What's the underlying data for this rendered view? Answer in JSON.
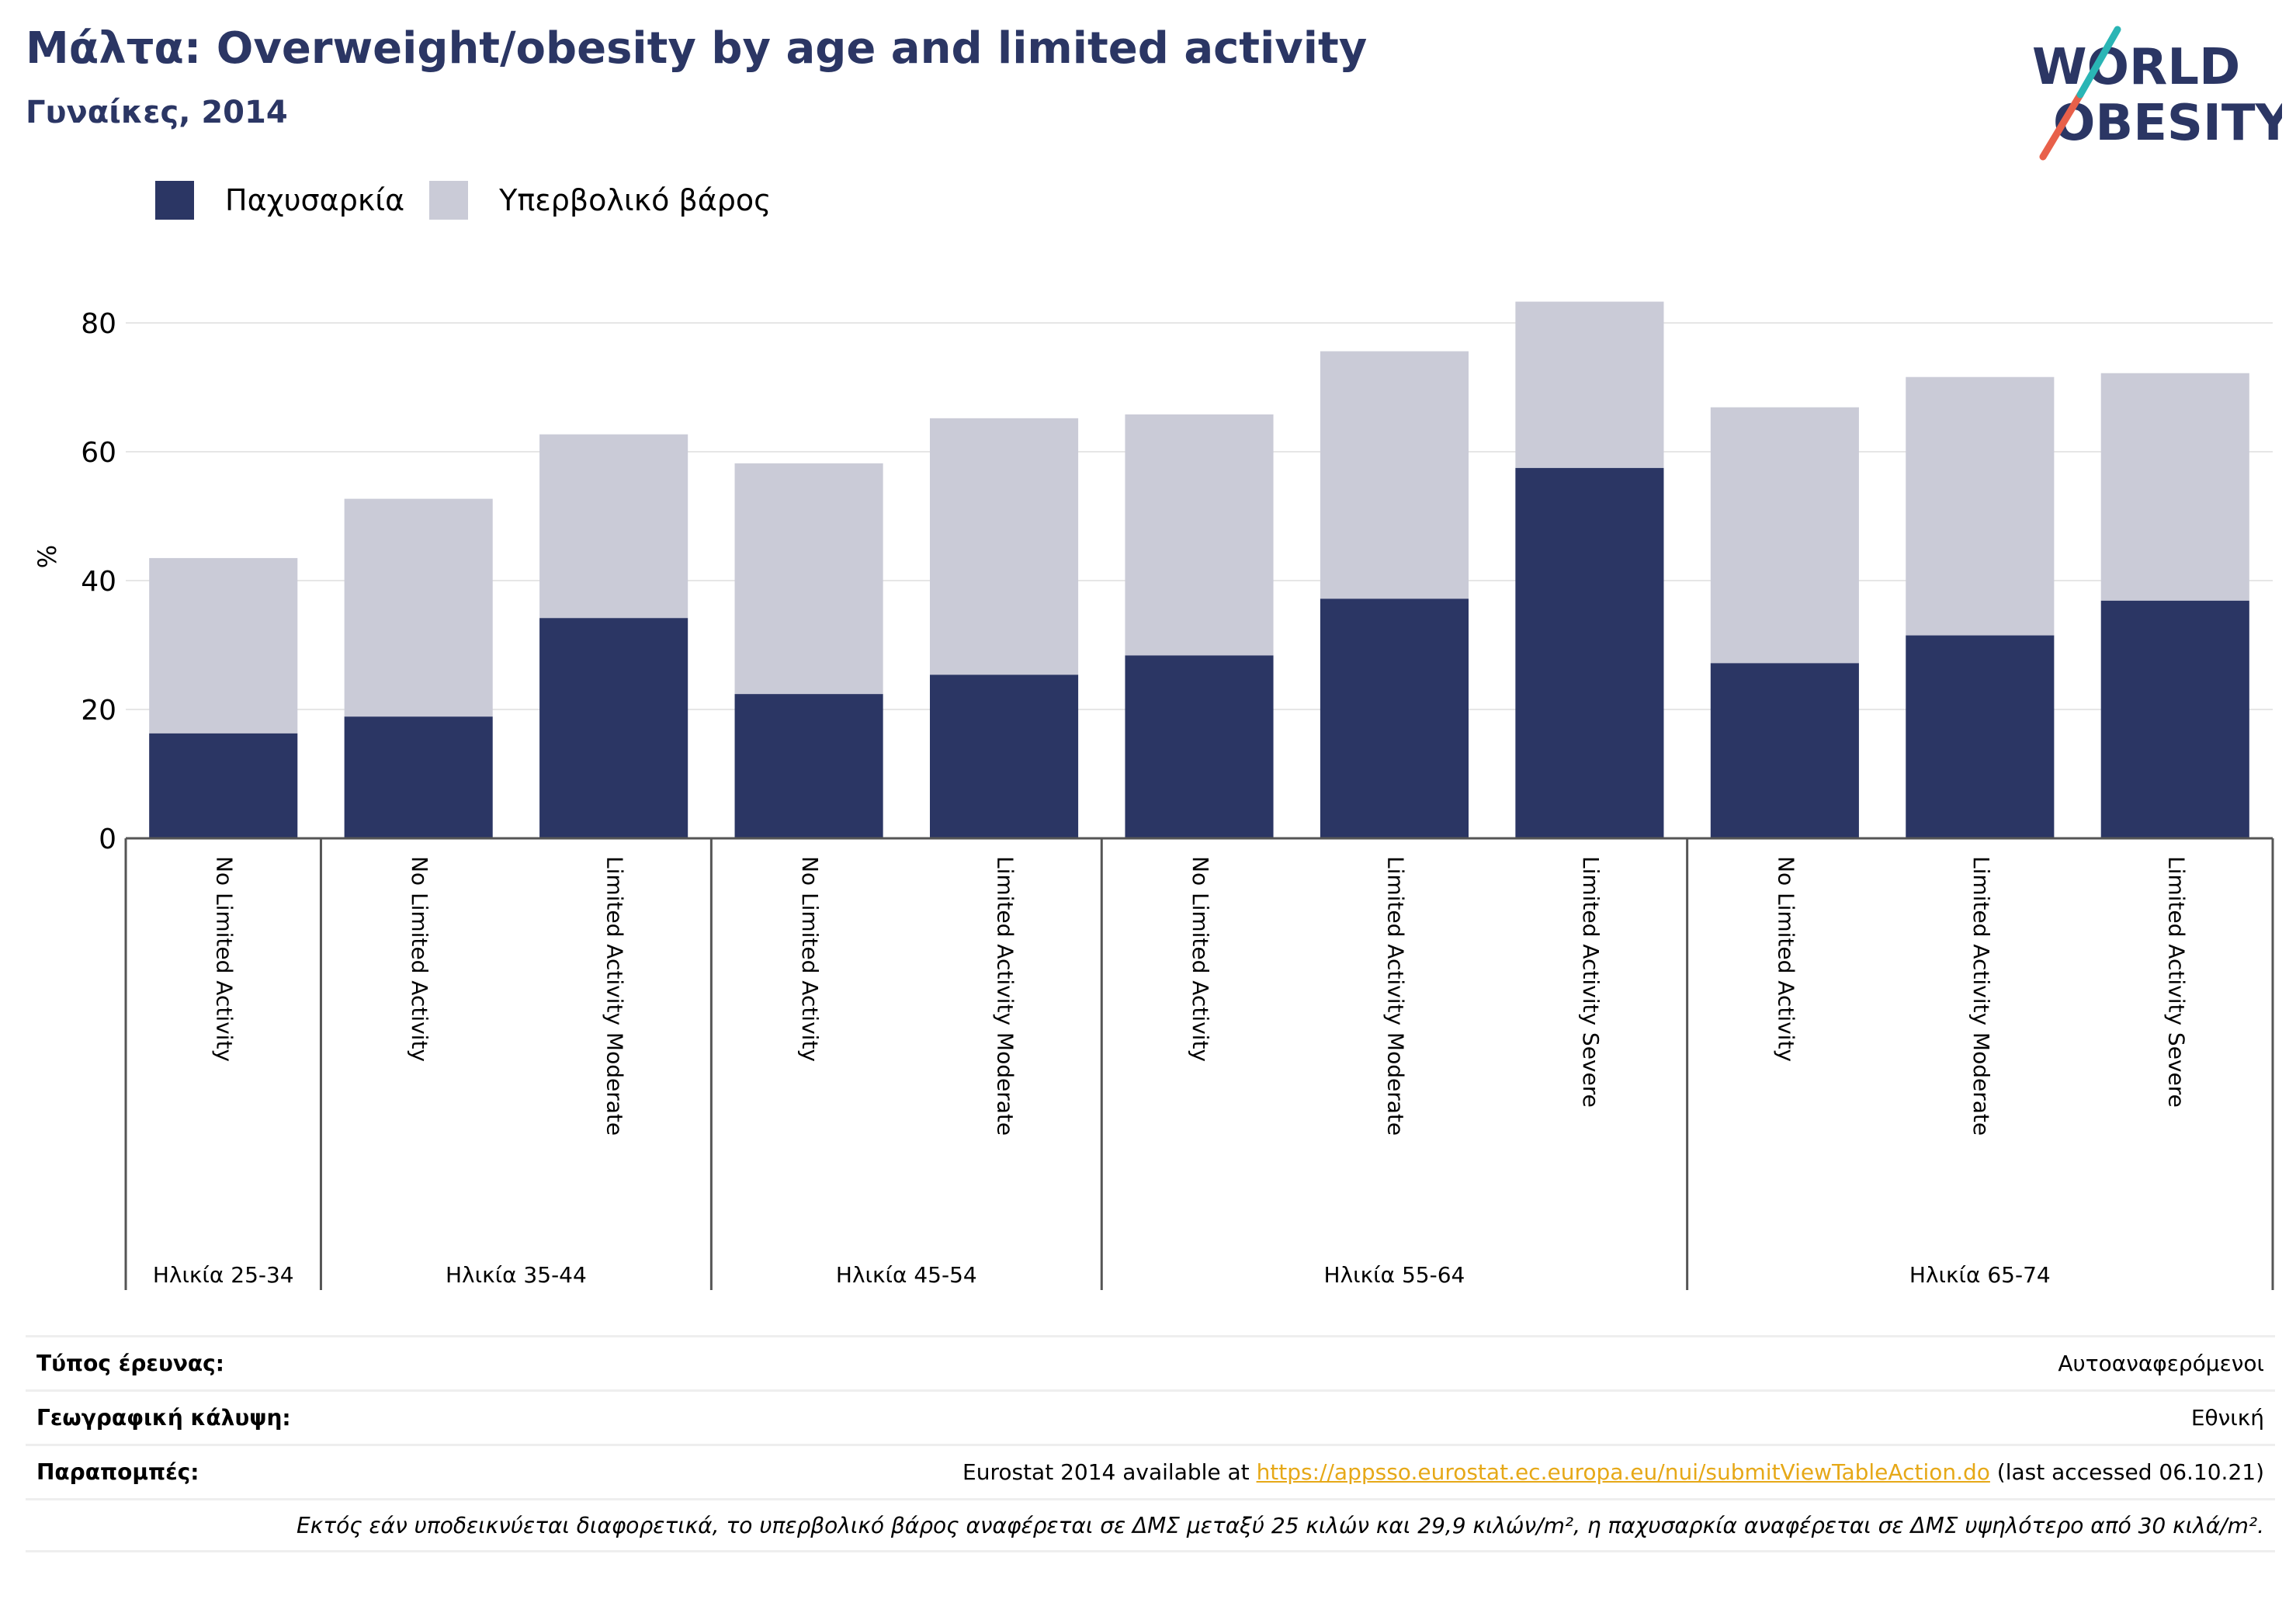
{
  "title": "Μάλτα: Overweight/obesity by age and limited activity",
  "subtitle": "Γυναίκες, 2014",
  "logo": {
    "line1": "WORLD",
    "line2": "OBESITY"
  },
  "colors": {
    "obesity": "#2b3664",
    "overweight": "#cacbd7",
    "title": "#2b3664",
    "link": "#e6a817",
    "logo_teal": "#2ab5b5",
    "logo_red": "#e8604a"
  },
  "chart_data": {
    "type": "bar",
    "stacked": true,
    "ylabel": "%",
    "ylim": [
      0,
      90
    ],
    "yticks": [
      0,
      20,
      40,
      60,
      80
    ],
    "grid": true,
    "legend_position": "top-left",
    "categories": [
      "No Limited Activity",
      "No Limited Activity",
      "Limited Activity Moderate",
      "No Limited Activity",
      "Limited Activity Moderate",
      "No Limited Activity",
      "Limited Activity Moderate",
      "Limited Activity Severe",
      "No Limited Activity",
      "Limited Activity Moderate",
      "Limited Activity Severe"
    ],
    "groups": [
      {
        "label": "Ηλικία 25-34",
        "count": 1
      },
      {
        "label": "Ηλικία 35-44",
        "count": 2
      },
      {
        "label": "Ηλικία 45-54",
        "count": 2
      },
      {
        "label": "Ηλικία 55-64",
        "count": 3
      },
      {
        "label": "Ηλικία 65-74",
        "count": 3
      }
    ],
    "series": [
      {
        "name": "Παχυσαρκία",
        "values": [
          16.3,
          18.9,
          34.2,
          22.4,
          25.4,
          28.4,
          37.2,
          57.5,
          27.2,
          31.5,
          36.9
        ]
      },
      {
        "name": "Υπερβολικό βάρος",
        "values": [
          27.2,
          33.8,
          28.5,
          35.8,
          39.8,
          37.4,
          38.4,
          25.8,
          39.7,
          40.1,
          35.3
        ]
      }
    ]
  },
  "footer": {
    "survey_label": "Τύπος έρευνας:",
    "survey_value": "Αυτοαναφερόμενοι",
    "coverage_label": "Γεωγραφική κάλυψη:",
    "coverage_value": "Εθνική",
    "refs_label": "Παραπομπές:",
    "refs_prefix": "Eurostat 2014 available at ",
    "refs_link": "https://appsso.eurostat.ec.europa.eu/nui/submitViewTableAction.do",
    "refs_suffix": " (last accessed 06.10.21)",
    "note": "Εκτός εάν υποδεικνύεται διαφορετικά, το υπερβολικό βάρος αναφέρεται σε ΔΜΣ μεταξύ 25 κιλών και 29,9 κιλών/m², η παχυσαρκία αναφέρεται σε ΔΜΣ υψηλότερο από 30 κιλά/m²."
  }
}
